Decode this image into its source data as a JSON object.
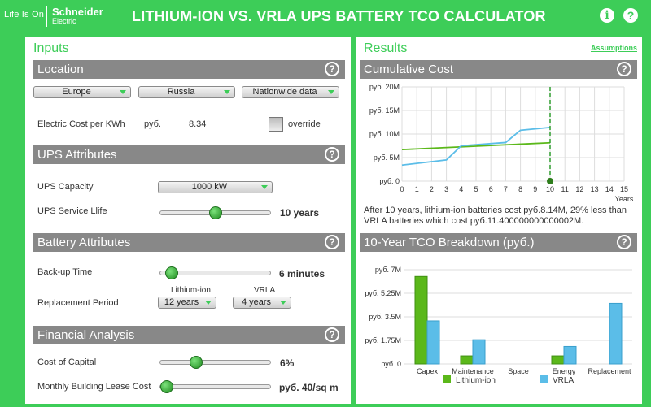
{
  "header": {
    "tagline": "Life Is On",
    "brand": "Schneider",
    "brand_sub": "Electric",
    "title": "LITHIUM-ION VS. VRLA UPS BATTERY TCO CALCULATOR",
    "info_icon": "i",
    "help_icon": "?"
  },
  "inputs": {
    "heading": "Inputs",
    "location": {
      "title": "Location",
      "region": "Europe",
      "country": "Russia",
      "data_scope": "Nationwide data",
      "electric_cost_label": "Electric Cost per KWh",
      "currency": "руб.",
      "electric_cost_value": "8.34",
      "override_label": "override"
    },
    "ups": {
      "title": "UPS Attributes",
      "capacity_label": "UPS Capacity",
      "capacity_value": "1000 kW",
      "service_life_label": "UPS Service Llife",
      "service_life_value": "10 years",
      "service_life_level": 0.5
    },
    "battery": {
      "title": "Battery Attributes",
      "backup_label": "Back-up Time",
      "backup_value": "6 minutes",
      "backup_level": 0.05,
      "liion_header": "Lithium-ion",
      "vrla_header": "VRLA",
      "replacement_label": "Replacement Period",
      "liion_period": "12 years",
      "vrla_period": "4 years"
    },
    "financial": {
      "title": "Financial Analysis",
      "capital_label": "Cost of Capital",
      "capital_value": "6%",
      "capital_level": 0.3,
      "lease_label": "Monthly Building Lease Cost",
      "lease_value": "руб. 40/sq m",
      "lease_level": 0.0
    },
    "help": "?"
  },
  "results": {
    "heading": "Results",
    "assumptions_link": "Assumptions",
    "cumulative_title": "Cumulative Cost",
    "summary": "After 10 years,  lithium-ion batteries cost руб.8.14M, 29% less than VRLA batteries which cost руб.11.400000000000002M.",
    "breakdown_title": "10-Year TCO Breakdown (руб.)",
    "help": "?",
    "legend_liion": "Lithium-ion",
    "legend_vrla": "VRLA"
  },
  "colors": {
    "brand": "#3dcd58",
    "liion": "#5bb81a",
    "vrla": "#5bbde8",
    "section_bar": "#888888"
  },
  "chart_data": [
    {
      "type": "line",
      "title": "Cumulative Cost",
      "xlabel": "Years",
      "x": [
        0,
        1,
        2,
        3,
        4,
        5,
        6,
        7,
        8,
        9,
        10
      ],
      "x_ticks": [
        "0",
        "1",
        "2",
        "3",
        "4",
        "5",
        "6",
        "7",
        "8",
        "9",
        "10",
        "11",
        "12",
        "13",
        "14",
        "15"
      ],
      "y_ticks": [
        "руб. 0",
        "руб. 5M",
        "руб. 10M",
        "руб. 15M",
        "руб. 20M"
      ],
      "xlim": [
        0,
        15
      ],
      "ylim": [
        0,
        20
      ],
      "series": [
        {
          "name": "Lithium-ion",
          "color": "#5bb81a",
          "x": [
            0,
            10
          ],
          "y": [
            6.7,
            8.14
          ]
        },
        {
          "name": "VRLA",
          "color": "#5bbde8",
          "x": [
            0,
            3,
            4,
            7,
            8,
            9,
            10
          ],
          "y": [
            3.4,
            4.5,
            7.5,
            8.2,
            10.8,
            11.1,
            11.4
          ]
        }
      ],
      "marker_year": 10,
      "grid": true
    },
    {
      "type": "bar",
      "title": "10-Year TCO Breakdown (руб.)",
      "categories": [
        "Capex",
        "Maintenance",
        "Space",
        "Energy",
        "Replacement"
      ],
      "y_ticks": [
        "руб. 0",
        "руб. 1.75M",
        "руб. 3.5M",
        "руб. 5.25M",
        "руб. 7M"
      ],
      "ylim": [
        0,
        7
      ],
      "series": [
        {
          "name": "Lithium-ion",
          "color": "#5bb81a",
          "values": [
            6.5,
            0.6,
            0,
            0.6,
            0
          ]
        },
        {
          "name": "VRLA",
          "color": "#5bbde8",
          "values": [
            3.2,
            1.8,
            0,
            1.3,
            4.5
          ]
        }
      ],
      "legend": "bottom",
      "grid": true
    }
  ]
}
